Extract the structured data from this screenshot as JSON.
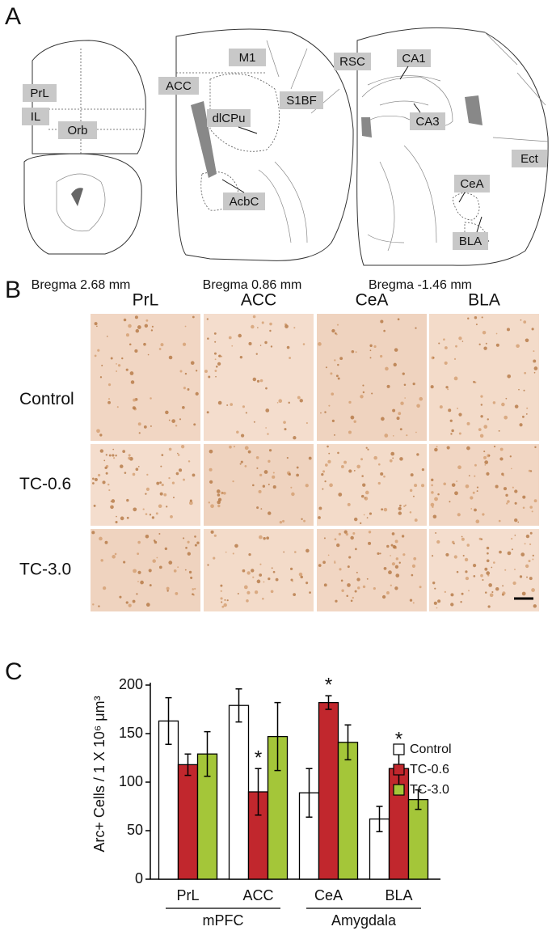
{
  "panel_a": {
    "label": "A",
    "sections": [
      {
        "caption": "Bregma 2.68 mm",
        "regions": [
          "PrL",
          "IL",
          "Orb"
        ]
      },
      {
        "caption": "Bregma 0.86 mm",
        "regions": [
          "M1",
          "ACC",
          "S1BF",
          "dlCPu",
          "AcbC"
        ]
      },
      {
        "caption": "Bregma -1.46 mm",
        "regions": [
          "RSC",
          "CA1",
          "CA3",
          "Ect",
          "CeA",
          "BLA"
        ]
      }
    ]
  },
  "panel_b": {
    "label": "B",
    "columns": [
      "PrL",
      "ACC",
      "CeA",
      "BLA"
    ],
    "rows": [
      "Control",
      "TC-0.6",
      "TC-3.0"
    ]
  },
  "panel_c_label": "C",
  "chart_data": {
    "type": "bar",
    "ylabel": "Arc+ Cells / 1 X 10⁶ μm³",
    "categories": [
      "PrL",
      "ACC",
      "CeA",
      "BLA"
    ],
    "groups": [
      "mPFC",
      "Amygdala"
    ],
    "series": [
      {
        "name": "Control",
        "color": "#ffffff",
        "values": [
          163,
          179,
          89,
          62
        ],
        "errors": [
          24,
          17,
          25,
          13
        ]
      },
      {
        "name": "TC-0.6",
        "color": "#c1272d",
        "values": [
          118,
          90,
          182,
          114
        ],
        "errors": [
          11,
          24,
          7,
          19
        ],
        "value_annotations": [
          null,
          "*",
          "*",
          "*"
        ]
      },
      {
        "name": "TC-3.0",
        "color": "#a4c639",
        "values": [
          129,
          147,
          141,
          82
        ],
        "errors": [
          23,
          35,
          18,
          10
        ]
      }
    ],
    "ylim": [
      0,
      200
    ],
    "yticks": [
      0,
      50,
      100,
      150,
      200
    ],
    "legend": "top-right"
  }
}
